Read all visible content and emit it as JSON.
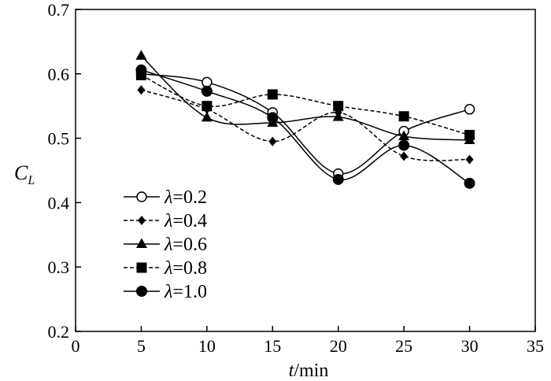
{
  "chart_data": {
    "type": "line",
    "title": "",
    "xlabel": {
      "var": "t",
      "rest": "/min"
    },
    "ylabel": {
      "main": "C",
      "sub": "L"
    },
    "xlim": [
      0,
      35
    ],
    "ylim": [
      0.2,
      0.7
    ],
    "xticks": [
      0,
      5,
      10,
      15,
      20,
      25,
      30,
      35
    ],
    "yticks": [
      0.2,
      0.3,
      0.4,
      0.5,
      0.6,
      0.7
    ],
    "xtick_labels": [
      "0",
      "5",
      "10",
      "15",
      "20",
      "25",
      "30",
      "35"
    ],
    "ytick_labels": [
      "0.2",
      "0.3",
      "0.4",
      "0.5",
      "0.6",
      "0.7"
    ],
    "grid": false,
    "legend_position": "bottom-left",
    "x": [
      5,
      10,
      15,
      20,
      25,
      30
    ],
    "series": [
      {
        "name": "λ=0.2",
        "symbol": "λ",
        "value_text": "=0.2",
        "marker": "circle-open",
        "line": "solid",
        "values": [
          0.6,
          0.587,
          0.54,
          0.445,
          0.511,
          0.545
        ]
      },
      {
        "name": "λ=0.4",
        "symbol": "λ",
        "value_text": "=0.4",
        "marker": "diamond",
        "line": "dashed",
        "values": [
          0.575,
          0.545,
          0.495,
          0.54,
          0.472,
          0.467
        ]
      },
      {
        "name": "λ=0.6",
        "symbol": "λ",
        "value_text": "=0.6",
        "marker": "triangle",
        "line": "solid",
        "values": [
          0.628,
          0.532,
          0.524,
          0.533,
          0.503,
          0.497
        ]
      },
      {
        "name": "λ=0.8",
        "symbol": "λ",
        "value_text": "=0.8",
        "marker": "square",
        "line": "dashed",
        "values": [
          0.598,
          0.55,
          0.568,
          0.55,
          0.534,
          0.505
        ]
      },
      {
        "name": "λ=1.0",
        "symbol": "λ",
        "value_text": "=1.0",
        "marker": "circle-filled",
        "line": "solid",
        "values": [
          0.606,
          0.573,
          0.532,
          0.436,
          0.489,
          0.43
        ]
      }
    ]
  }
}
